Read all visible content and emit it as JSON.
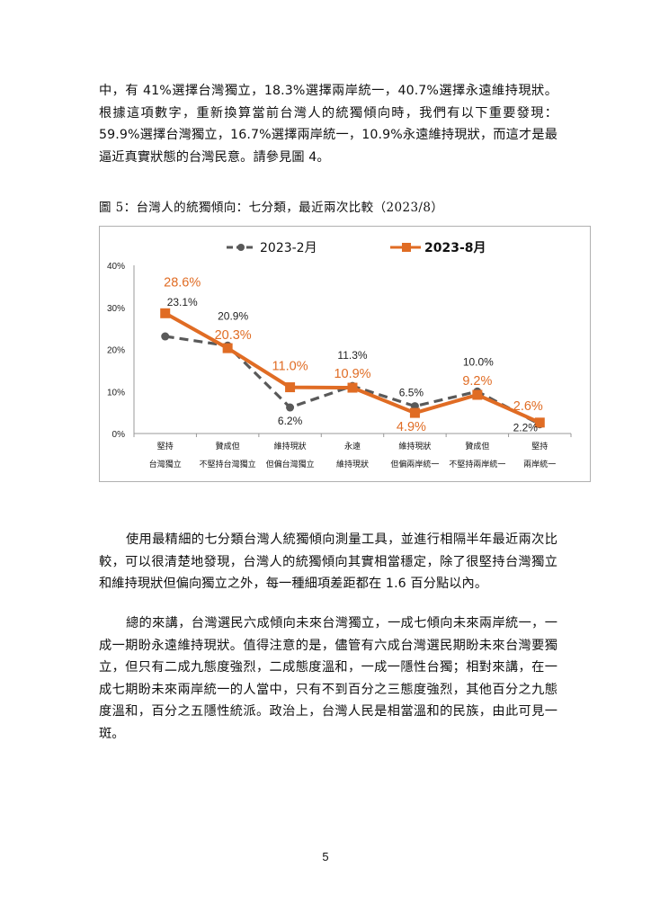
{
  "paragraph1": "中，有 41%選擇台灣獨立，18.3%選擇兩岸統一，40.7%選擇永遠維持現狀。根據這項數字，重新換算當前台灣人的統獨傾向時，我們有以下重要發現：59.9%選擇台灣獨立，16.7%選擇兩岸統一，10.9%永遠維持現狀，而這才是最逼近真實狀態的台灣民意。請參見圖 4。",
  "figure_caption": "圖 5：台灣人的統獨傾向：七分類，最近兩次比較（2023/8）",
  "chart_data": {
    "type": "line",
    "categories": [
      "堅持\n台灣獨立",
      "贊成但\n不堅持台灣獨立",
      "維持現狀\n但偏台灣獨立",
      "永遠\n維持現狀",
      "維持現狀\n但偏兩岸統一",
      "贊成但\n不堅持兩岸統一",
      "堅持\n兩岸統一"
    ],
    "series": [
      {
        "name": "2023-2月",
        "values": [
          23.1,
          20.9,
          6.2,
          11.3,
          6.5,
          10.0,
          2.2
        ],
        "labels": [
          "23.1%",
          "20.9%",
          "6.2%",
          "11.3%",
          "6.5%",
          "10.0%",
          "2.2%"
        ],
        "color": "#595959",
        "line_style": "dashed",
        "marker": "circle"
      },
      {
        "name": "2023-8月",
        "values": [
          28.6,
          20.3,
          11.0,
          10.9,
          4.9,
          9.2,
          2.6
        ],
        "labels": [
          "28.6%",
          "20.3%",
          "11.0%",
          "10.9%",
          "4.9%",
          "9.2%",
          "2.6%"
        ],
        "color": "#e06c24",
        "line_style": "solid",
        "marker": "square"
      }
    ],
    "ylim": [
      0,
      40
    ],
    "yticks": [
      "0%",
      "10%",
      "20%",
      "30%",
      "40%"
    ],
    "ytick_values": [
      0,
      10,
      20,
      30,
      40
    ],
    "legend_position": "top",
    "grid": false
  },
  "paragraph2": "使用最精細的七分類台灣人統獨傾向測量工具，並進行相隔半年最近兩次比較，可以很清楚地發現，台灣人的統獨傾向其實相當穩定，除了很堅持台灣獨立和維持現狀但偏向獨立之外，每一種細項差距都在 1.6 百分點以內。",
  "paragraph3": "總的來講，台灣選民六成傾向未來台灣獨立，一成七傾向未來兩岸統一，一成一期盼永遠維持現狀。值得注意的是，儘管有六成台灣選民期盼未來台灣要獨立，但只有二成九態度強烈，二成態度溫和，一成一隱性台獨；相對來講，在一成七期盼未來兩岸統一的人當中，只有不到百分之三態度強烈，其他百分之九態度溫和，百分之五隱性統派。政治上，台灣人民是相當溫和的民族，由此可見一斑。",
  "page_number": "5"
}
